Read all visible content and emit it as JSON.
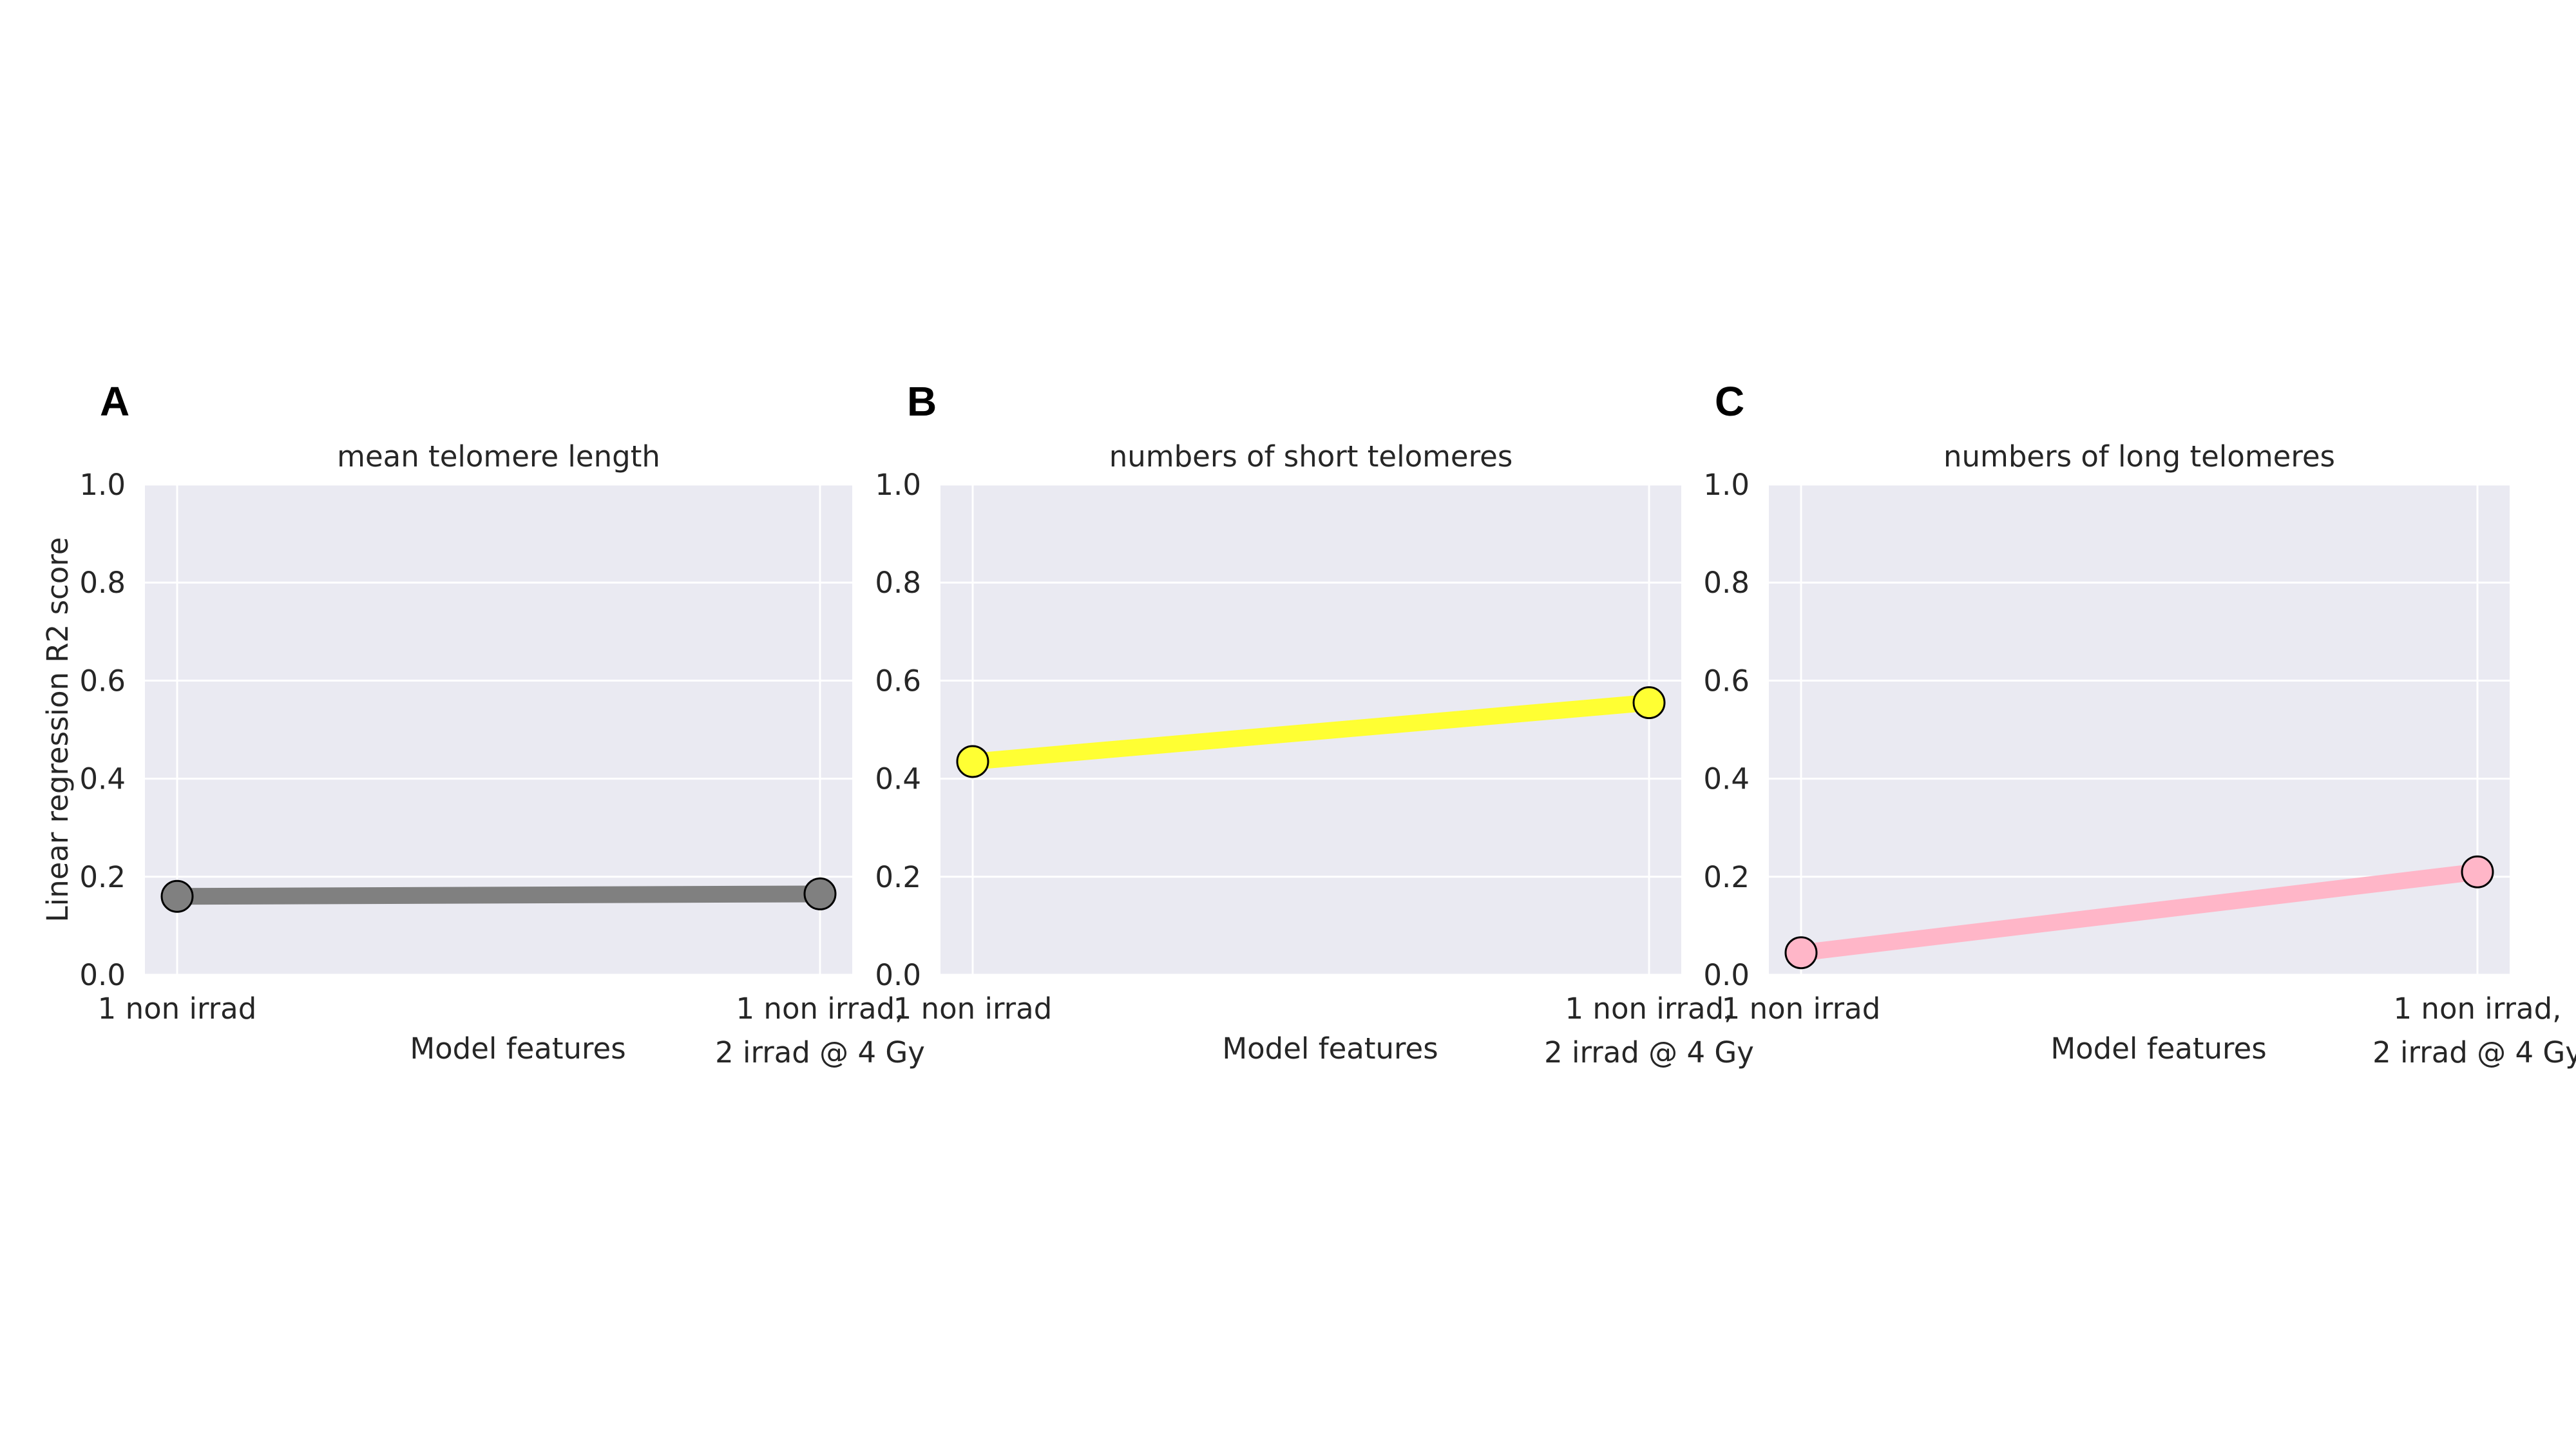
{
  "figure": {
    "shared_ylabel": "Linear regression R2 score"
  },
  "chart_data": [
    {
      "type": "line",
      "panel": "A",
      "title": "mean telomere length",
      "xlabel": "Model features",
      "ylabel": "Linear regression R2 score",
      "categories": [
        [
          "1 non irrad"
        ],
        [
          "1 non irrad,",
          "2 irrad @ 4 Gy"
        ]
      ],
      "series": [
        {
          "values": [
            0.16,
            0.165
          ],
          "color": "#808080"
        }
      ],
      "ylim": [
        0,
        1
      ],
      "yticks": [
        "0.0",
        "0.2",
        "0.4",
        "0.6",
        "0.8",
        "1.0"
      ],
      "grid": true
    },
    {
      "type": "line",
      "panel": "B",
      "title": "numbers of short telomeres",
      "xlabel": "Model features",
      "ylabel": "",
      "categories": [
        [
          "1 non irrad"
        ],
        [
          "1 non irrad,",
          "2 irrad @ 4 Gy"
        ]
      ],
      "series": [
        {
          "values": [
            0.435,
            0.555
          ],
          "color": "#ffff33"
        }
      ],
      "ylim": [
        0,
        1
      ],
      "yticks": [
        "0.0",
        "0.2",
        "0.4",
        "0.6",
        "0.8",
        "1.0"
      ],
      "grid": true
    },
    {
      "type": "line",
      "panel": "C",
      "title": "numbers of long telomeres",
      "xlabel": "Model features",
      "ylabel": "",
      "categories": [
        [
          "1 non irrad"
        ],
        [
          "1 non irrad,",
          "2 irrad @ 4 Gy"
        ]
      ],
      "series": [
        {
          "values": [
            0.045,
            0.21
          ],
          "color": "#ffb6c8"
        }
      ],
      "ylim": [
        0,
        1
      ],
      "yticks": [
        "0.0",
        "0.2",
        "0.4",
        "0.6",
        "0.8",
        "1.0"
      ],
      "grid": true
    }
  ],
  "style": {
    "axes_background": "#eaeaf2",
    "grid_color": "#ffffff",
    "marker_edge": "#000000"
  }
}
